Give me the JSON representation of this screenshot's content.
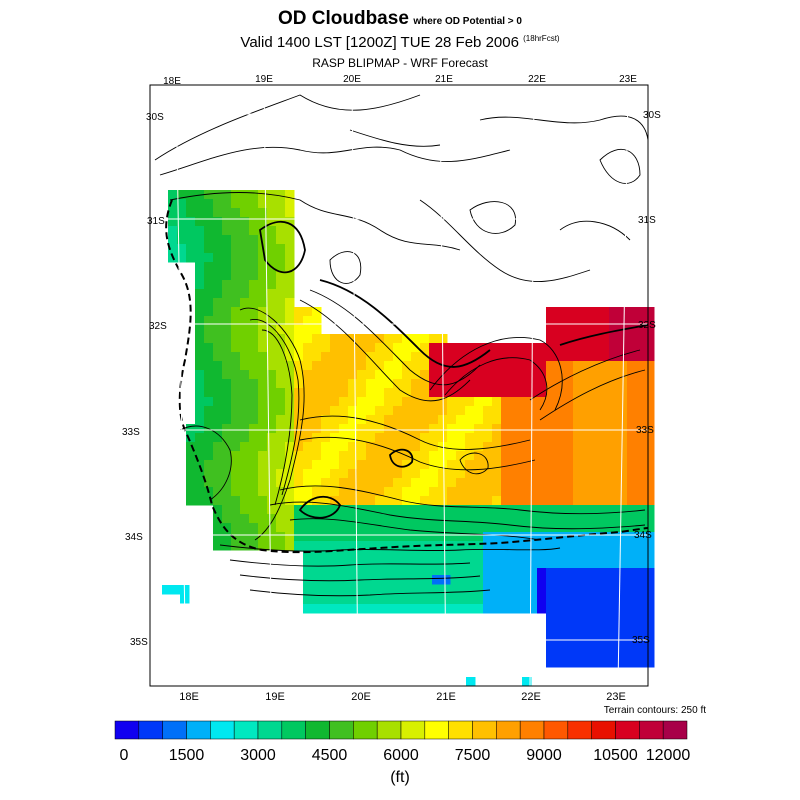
{
  "title": {
    "main": "OD Cloudbase",
    "qualifier": "where OD Potential > 0",
    "valid": "Valid 1400 LST [1200Z] TUE 28 Feb 2006",
    "forecast_hours": "(18hrFcst)",
    "subtitle": "RASP BLIPMAP - WRF Forecast"
  },
  "map": {
    "top_lon_labels": [
      "18E",
      "19E",
      "20E",
      "21E",
      "22E",
      "23E"
    ],
    "bottom_lon_labels": [
      "18E",
      "19E",
      "20E",
      "21E",
      "22E",
      "23E"
    ],
    "left_lat_labels": [
      "30S",
      "31S",
      "32S",
      "33S",
      "34S",
      "35S"
    ],
    "right_lat_labels": [
      "30S",
      "31S",
      "32S",
      "33S",
      "34S",
      "35S"
    ],
    "terrain_note": "Terrain contours: 250 ft"
  },
  "chart_data": {
    "type": "heatmap",
    "title": "OD Cloudbase",
    "variable": "OD cloudbase height",
    "units": "(ft)",
    "colorbar": {
      "ticks": [
        0,
        1500,
        3000,
        4500,
        6000,
        7500,
        9000,
        10500,
        12000
      ],
      "tick_labels": [
        "0",
        "1500",
        "3000",
        "4500",
        "6000",
        "7500",
        "9000",
        "10500",
        "12000"
      ],
      "range": [
        0,
        12000
      ],
      "bins": 24,
      "colors": [
        "#1000f0",
        "#0038f8",
        "#0070f8",
        "#00b0f8",
        "#00e8f0",
        "#00e8c0",
        "#00d890",
        "#00c860",
        "#10b830",
        "#40c020",
        "#70d000",
        "#a8e000",
        "#d8f000",
        "#ffff00",
        "#ffe000",
        "#ffc000",
        "#ffa000",
        "#ff8000",
        "#ff5800",
        "#f83000",
        "#e81000",
        "#d80020",
        "#c00038",
        "#a80048"
      ]
    },
    "regions": [
      {
        "name": "west-coast-band",
        "approx_value_ft": 4500
      },
      {
        "name": "central-karoo-band",
        "approx_value_ft": 7500
      },
      {
        "name": "east-karoo-high",
        "approx_value_ft": 9000
      },
      {
        "name": "northeast-peak",
        "approx_value_ft": 11000
      },
      {
        "name": "south-coast",
        "approx_value_ft": 2500
      },
      {
        "name": "southeast-ocean",
        "approx_value_ft": 500
      }
    ]
  }
}
